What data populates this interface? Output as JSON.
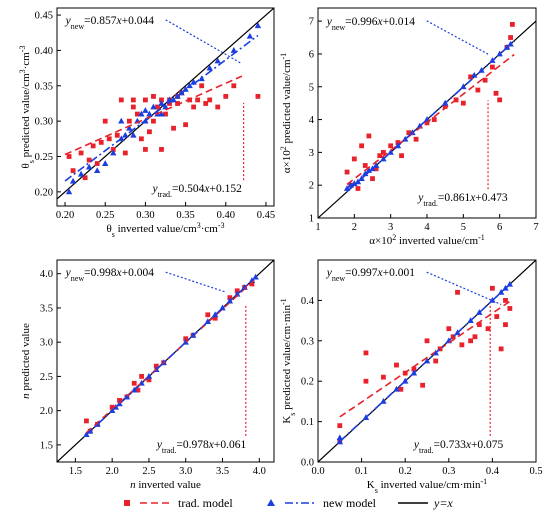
{
  "legend": [
    {
      "label": "trad. model",
      "color": "#e8212a",
      "marker": "square",
      "line": "dashed"
    },
    {
      "label": "new model",
      "color": "#1b3ee0",
      "marker": "triangle",
      "line": "dashdot"
    },
    {
      "label": "y=x",
      "color": "#000000",
      "line": "solid"
    }
  ],
  "colors": {
    "trad": "#e8212a",
    "new": "#1b3ee0",
    "identity": "#000000"
  },
  "chart_data": [
    {
      "type": "scatter",
      "panel": "a",
      "xlabel": "θs inverted value/cm³·cm⁻³",
      "ylabel": "θs predicted value/cm³·cm⁻³",
      "xlim": [
        0.19,
        0.46
      ],
      "ylim": [
        0.18,
        0.46
      ],
      "xticks": [
        "0.20",
        "0.25",
        "0.30",
        "0.35",
        "0.40",
        "0.45"
      ],
      "yticks": [
        "0.20",
        "0.25",
        "0.30",
        "0.35",
        "0.40",
        "0.45"
      ],
      "eq_new": "ynew=0.857x+0.044",
      "eq_trad": "ytrad.=0.504x+0.152",
      "fit_new": {
        "slope": 0.857,
        "intercept": 0.044,
        "x": [
          0.2,
          0.44
        ]
      },
      "fit_trad": {
        "slope": 0.504,
        "intercept": 0.152,
        "x": [
          0.2,
          0.42
        ]
      },
      "trad": [
        [
          0.205,
          0.25
        ],
        [
          0.21,
          0.23
        ],
        [
          0.22,
          0.255
        ],
        [
          0.225,
          0.22
        ],
        [
          0.23,
          0.245
        ],
        [
          0.235,
          0.265
        ],
        [
          0.24,
          0.24
        ],
        [
          0.245,
          0.27
        ],
        [
          0.25,
          0.3
        ],
        [
          0.255,
          0.275
        ],
        [
          0.26,
          0.26
        ],
        [
          0.265,
          0.28
        ],
        [
          0.27,
          0.33
        ],
        [
          0.275,
          0.255
        ],
        [
          0.28,
          0.3
        ],
        [
          0.285,
          0.32
        ],
        [
          0.29,
          0.31
        ],
        [
          0.295,
          0.275
        ],
        [
          0.3,
          0.33
        ],
        [
          0.305,
          0.285
        ],
        [
          0.31,
          0.335
        ],
        [
          0.315,
          0.32
        ],
        [
          0.32,
          0.26
        ],
        [
          0.325,
          0.31
        ],
        [
          0.33,
          0.325
        ],
        [
          0.335,
          0.29
        ],
        [
          0.34,
          0.335
        ],
        [
          0.345,
          0.34
        ],
        [
          0.35,
          0.295
        ],
        [
          0.355,
          0.33
        ],
        [
          0.36,
          0.32
        ],
        [
          0.365,
          0.33
        ],
        [
          0.37,
          0.35
        ],
        [
          0.375,
          0.325
        ],
        [
          0.38,
          0.33
        ],
        [
          0.39,
          0.32
        ],
        [
          0.4,
          0.335
        ],
        [
          0.41,
          0.35
        ],
        [
          0.44,
          0.335
        ],
        [
          0.3,
          0.26
        ],
        [
          0.32,
          0.33
        ],
        [
          0.33,
          0.33
        ],
        [
          0.34,
          0.325
        ],
        [
          0.285,
          0.33
        ],
        [
          0.31,
          0.3
        ]
      ],
      "new": [
        [
          0.205,
          0.2
        ],
        [
          0.21,
          0.215
        ],
        [
          0.22,
          0.225
        ],
        [
          0.23,
          0.235
        ],
        [
          0.24,
          0.23
        ],
        [
          0.25,
          0.24
        ],
        [
          0.26,
          0.255
        ],
        [
          0.27,
          0.275
        ],
        [
          0.275,
          0.28
        ],
        [
          0.28,
          0.29
        ],
        [
          0.285,
          0.28
        ],
        [
          0.29,
          0.3
        ],
        [
          0.295,
          0.31
        ],
        [
          0.3,
          0.3
        ],
        [
          0.305,
          0.31
        ],
        [
          0.31,
          0.32
        ],
        [
          0.315,
          0.31
        ],
        [
          0.32,
          0.325
        ],
        [
          0.325,
          0.32
        ],
        [
          0.33,
          0.33
        ],
        [
          0.335,
          0.33
        ],
        [
          0.34,
          0.335
        ],
        [
          0.345,
          0.34
        ],
        [
          0.35,
          0.345
        ],
        [
          0.355,
          0.35
        ],
        [
          0.36,
          0.355
        ],
        [
          0.37,
          0.36
        ],
        [
          0.38,
          0.375
        ],
        [
          0.39,
          0.385
        ],
        [
          0.41,
          0.4
        ],
        [
          0.43,
          0.42
        ],
        [
          0.44,
          0.435
        ],
        [
          0.27,
          0.3
        ],
        [
          0.3,
          0.315
        ],
        [
          0.32,
          0.31
        ]
      ]
    },
    {
      "type": "scatter",
      "panel": "b",
      "xlabel": "α×10² inverted value/cm⁻¹",
      "ylabel": "α×10² predicted value/cm⁻¹",
      "xlim": [
        1,
        7
      ],
      "ylim": [
        1,
        7.4
      ],
      "xticks": [
        "1",
        "2",
        "3",
        "4",
        "5",
        "6",
        "7"
      ],
      "yticks": [
        "1",
        "2",
        "3",
        "4",
        "5",
        "6",
        "7"
      ],
      "eq_new": "ynew=0.996x+0.014",
      "eq_trad": "ytrad.=0.861x+0.473",
      "fit_new": {
        "slope": 0.996,
        "intercept": 0.014,
        "x": [
          1.8,
          6.4
        ]
      },
      "fit_trad": {
        "slope": 0.861,
        "intercept": 0.473,
        "x": [
          1.8,
          6.4
        ]
      },
      "trad": [
        [
          1.8,
          2.4
        ],
        [
          1.9,
          2.0
        ],
        [
          2.0,
          2.8
        ],
        [
          2.1,
          1.9
        ],
        [
          2.2,
          3.2
        ],
        [
          2.3,
          2.6
        ],
        [
          2.4,
          3.5
        ],
        [
          2.5,
          2.2
        ],
        [
          2.6,
          2.5
        ],
        [
          2.7,
          2.9
        ],
        [
          2.8,
          3.0
        ],
        [
          3.0,
          3.2
        ],
        [
          3.2,
          3.3
        ],
        [
          3.3,
          2.9
        ],
        [
          3.5,
          3.6
        ],
        [
          3.7,
          3.4
        ],
        [
          4.0,
          3.9
        ],
        [
          4.2,
          4.0
        ],
        [
          4.5,
          4.4
        ],
        [
          4.8,
          4.6
        ],
        [
          5.0,
          4.5
        ],
        [
          5.2,
          5.3
        ],
        [
          5.4,
          4.9
        ],
        [
          5.6,
          5.2
        ],
        [
          5.8,
          5.6
        ],
        [
          5.9,
          4.8
        ],
        [
          6.0,
          4.6
        ],
        [
          6.2,
          6.2
        ],
        [
          6.3,
          6.5
        ],
        [
          6.35,
          6.9
        ]
      ],
      "new": [
        [
          1.8,
          1.9
        ],
        [
          1.9,
          2.0
        ],
        [
          2.0,
          2.05
        ],
        [
          2.1,
          2.1
        ],
        [
          2.2,
          2.2
        ],
        [
          2.3,
          2.35
        ],
        [
          2.4,
          2.45
        ],
        [
          2.5,
          2.5
        ],
        [
          2.6,
          2.6
        ],
        [
          2.8,
          2.8
        ],
        [
          3.0,
          3.0
        ],
        [
          3.2,
          3.2
        ],
        [
          3.4,
          3.4
        ],
        [
          3.6,
          3.6
        ],
        [
          3.8,
          3.8
        ],
        [
          4.0,
          4.0
        ],
        [
          4.5,
          4.5
        ],
        [
          5.0,
          5.0
        ],
        [
          5.3,
          5.35
        ],
        [
          5.5,
          5.5
        ],
        [
          5.8,
          5.8
        ],
        [
          6.0,
          6.0
        ],
        [
          6.2,
          6.2
        ],
        [
          6.3,
          6.3
        ]
      ]
    },
    {
      "type": "scatter",
      "panel": "c",
      "xlabel": "n inverted value",
      "ylabel": "n predicted value",
      "xlim": [
        1.25,
        4.2
      ],
      "ylim": [
        1.25,
        4.2
      ],
      "xticks": [
        "1.5",
        "2.0",
        "2.5",
        "3.0",
        "3.5",
        "4.0"
      ],
      "yticks": [
        "1.5",
        "2.0",
        "2.5",
        "3.0",
        "3.5",
        "4.0"
      ],
      "eq_new": "ynew=0.998x+0.004",
      "eq_trad": "ytrad.=0.978x+0.061",
      "fit_new": {
        "slope": 0.998,
        "intercept": 0.004,
        "x": [
          1.65,
          3.95
        ]
      },
      "fit_trad": {
        "slope": 0.978,
        "intercept": 0.061,
        "x": [
          1.65,
          3.95
        ]
      },
      "trad": [
        [
          1.65,
          1.85
        ],
        [
          1.7,
          1.7
        ],
        [
          1.8,
          1.8
        ],
        [
          2.0,
          2.05
        ],
        [
          2.1,
          2.15
        ],
        [
          2.2,
          2.2
        ],
        [
          2.3,
          2.4
        ],
        [
          2.35,
          2.3
        ],
        [
          2.4,
          2.5
        ],
        [
          2.5,
          2.45
        ],
        [
          2.6,
          2.65
        ],
        [
          2.7,
          2.7
        ],
        [
          3.0,
          3.05
        ],
        [
          3.1,
          3.1
        ],
        [
          3.3,
          3.4
        ],
        [
          3.4,
          3.35
        ],
        [
          3.6,
          3.65
        ],
        [
          3.7,
          3.75
        ],
        [
          3.8,
          3.8
        ],
        [
          3.9,
          3.85
        ]
      ],
      "new": [
        [
          1.65,
          1.65
        ],
        [
          1.7,
          1.7
        ],
        [
          1.8,
          1.8
        ],
        [
          2.0,
          2.0
        ],
        [
          2.05,
          2.05
        ],
        [
          2.1,
          2.1
        ],
        [
          2.2,
          2.2
        ],
        [
          2.3,
          2.3
        ],
        [
          2.4,
          2.4
        ],
        [
          2.5,
          2.5
        ],
        [
          2.6,
          2.6
        ],
        [
          2.7,
          2.7
        ],
        [
          3.0,
          3.0
        ],
        [
          3.1,
          3.1
        ],
        [
          3.3,
          3.3
        ],
        [
          3.4,
          3.4
        ],
        [
          3.5,
          3.5
        ],
        [
          3.6,
          3.6
        ],
        [
          3.7,
          3.7
        ],
        [
          3.8,
          3.8
        ],
        [
          3.9,
          3.9
        ],
        [
          3.95,
          3.95
        ]
      ]
    },
    {
      "type": "scatter",
      "panel": "d",
      "xlabel": "Ks inverted value/cm·min⁻¹",
      "ylabel": "Ks predicted value/cm·min⁻¹",
      "xlim": [
        0,
        0.5
      ],
      "ylim": [
        0,
        0.5
      ],
      "xticks": [
        "0.0",
        "0.1",
        "0.2",
        "0.3",
        "0.4",
        "0.5"
      ],
      "yticks": [
        "0.0",
        "0.1",
        "0.2",
        "0.3",
        "0.4"
      ],
      "eq_new": "ynew=0.997x+0.001",
      "eq_trad": "ytrad.=0.733x+0.075",
      "fit_new": {
        "slope": 0.997,
        "intercept": 0.001,
        "x": [
          0.05,
          0.44
        ]
      },
      "fit_trad": {
        "slope": 0.733,
        "intercept": 0.075,
        "x": [
          0.05,
          0.44
        ]
      },
      "trad": [
        [
          0.05,
          0.05
        ],
        [
          0.05,
          0.09
        ],
        [
          0.11,
          0.27
        ],
        [
          0.11,
          0.2
        ],
        [
          0.15,
          0.21
        ],
        [
          0.18,
          0.24
        ],
        [
          0.19,
          0.18
        ],
        [
          0.2,
          0.22
        ],
        [
          0.22,
          0.23
        ],
        [
          0.24,
          0.19
        ],
        [
          0.25,
          0.3
        ],
        [
          0.27,
          0.25
        ],
        [
          0.28,
          0.28
        ],
        [
          0.3,
          0.33
        ],
        [
          0.31,
          0.31
        ],
        [
          0.32,
          0.42
        ],
        [
          0.33,
          0.29
        ],
        [
          0.35,
          0.3
        ],
        [
          0.36,
          0.31
        ],
        [
          0.37,
          0.34
        ],
        [
          0.39,
          0.33
        ],
        [
          0.4,
          0.43
        ],
        [
          0.41,
          0.36
        ],
        [
          0.42,
          0.28
        ],
        [
          0.43,
          0.34
        ],
        [
          0.43,
          0.4
        ],
        [
          0.44,
          0.38
        ]
      ],
      "new": [
        [
          0.05,
          0.05
        ],
        [
          0.05,
          0.06
        ],
        [
          0.11,
          0.11
        ],
        [
          0.15,
          0.15
        ],
        [
          0.18,
          0.18
        ],
        [
          0.2,
          0.2
        ],
        [
          0.22,
          0.22
        ],
        [
          0.25,
          0.25
        ],
        [
          0.27,
          0.27
        ],
        [
          0.3,
          0.3
        ],
        [
          0.32,
          0.32
        ],
        [
          0.35,
          0.35
        ],
        [
          0.37,
          0.37
        ],
        [
          0.4,
          0.4
        ],
        [
          0.42,
          0.42
        ],
        [
          0.43,
          0.43
        ],
        [
          0.44,
          0.44
        ]
      ]
    }
  ]
}
